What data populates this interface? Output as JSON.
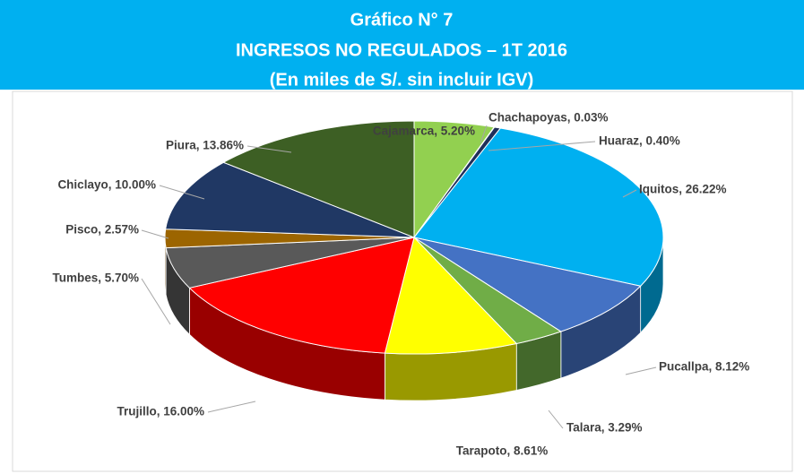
{
  "chart_data": {
    "type": "pie3d",
    "title": [
      "Gráfico N° 7",
      "INGRESOS NO REGULADOS – 1T 2016",
      "(En miles de S/.  sin incluir IGV)"
    ],
    "values": [
      5.2,
      0.03,
      0.4,
      26.22,
      8.12,
      3.29,
      8.61,
      16,
      5.7,
      2.57,
      10,
      13.86
    ],
    "value_labels": [
      "Cajamarca, 5.20%",
      "Chachapoyas, 0.03%",
      "Huaraz, 0.40%",
      "Iquitos, 26.22%",
      "Pucallpa, 8.12%",
      "Talara, 3.29%",
      "Tarapoto, 8.61%",
      "Trujillo, 16.00%",
      "Tumbes, 5.70%",
      "Pisco, 2.57%",
      "Chiclayo, 10.00%",
      "Piura, 13.86%"
    ],
    "colors": [
      "#92d050",
      "#203864",
      "#1f2f5a",
      "#00b0f0",
      "#4472c4",
      "#70ad47",
      "#ffff00",
      "#ff0000",
      "#595959",
      "#9c6500",
      "#203864",
      "#3d5f24"
    ]
  }
}
